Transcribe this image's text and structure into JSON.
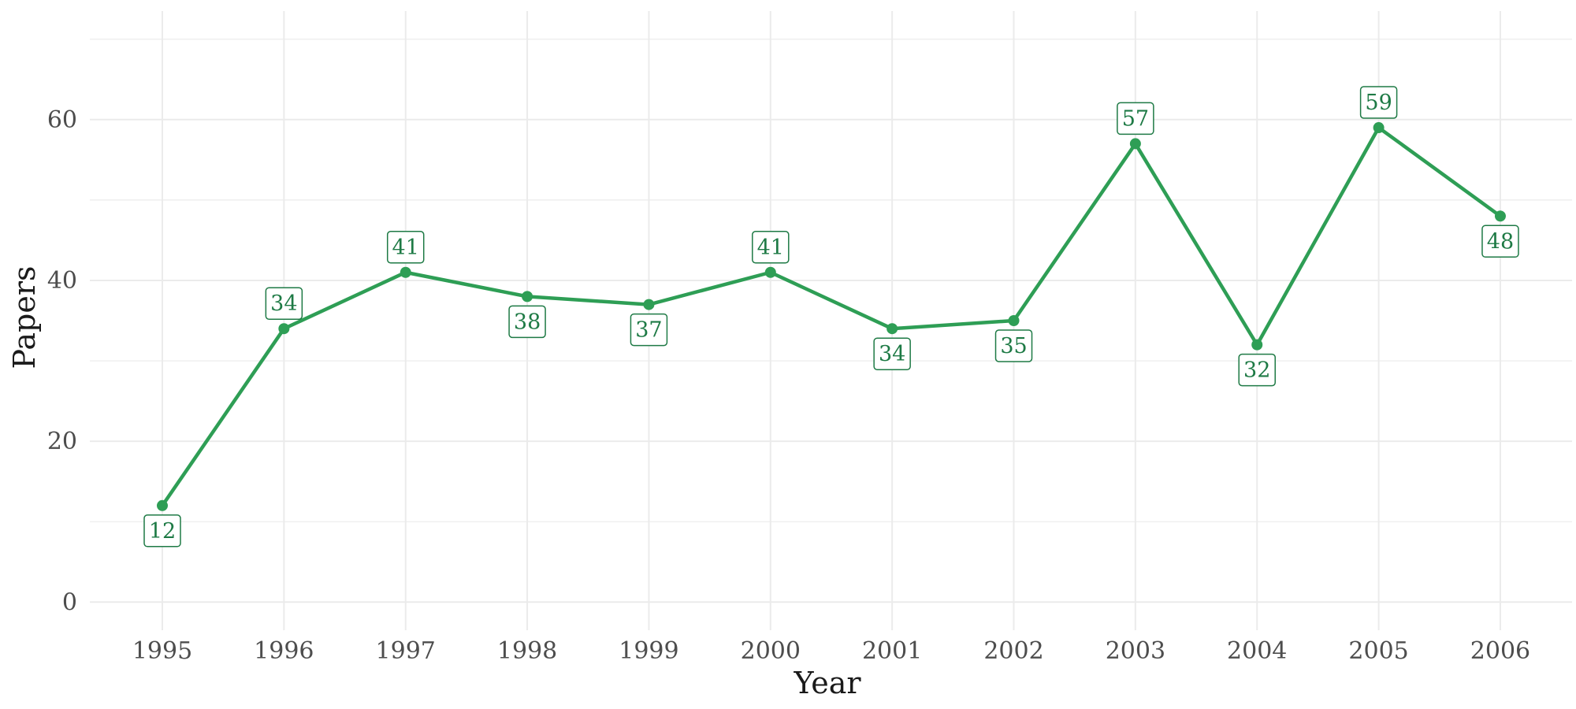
{
  "chart_data": {
    "type": "line",
    "title": "",
    "xlabel": "Year",
    "ylabel": "Papers",
    "x": [
      "1995",
      "1996",
      "1997",
      "1998",
      "1999",
      "2000",
      "2001",
      "2002",
      "2003",
      "2004",
      "2005",
      "2006"
    ],
    "series": [
      {
        "values": [
          12,
          34,
          41,
          38,
          37,
          41,
          34,
          35,
          57,
          32,
          59,
          48
        ]
      }
    ],
    "label_position": [
      "below",
      "above",
      "above",
      "below",
      "below",
      "above",
      "below",
      "below",
      "above",
      "below",
      "above",
      "below"
    ],
    "ylim": [
      -3.5,
      73.5
    ],
    "yticks": [
      0,
      20,
      40,
      60
    ],
    "grid": true,
    "legend": "none",
    "colors": {
      "line": "#2e9e55",
      "label_text": "#1e7a45",
      "grid": "#ebebeb"
    }
  }
}
